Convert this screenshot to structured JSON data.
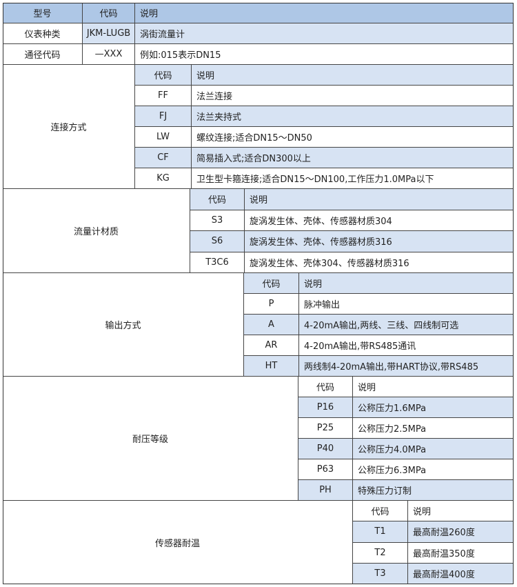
{
  "header": {
    "model": "型号",
    "code": "代码",
    "desc": "说明"
  },
  "rows": [
    {
      "label": "仪表种类",
      "code": "JKM-LUGB",
      "desc": "涡街流量计"
    },
    {
      "label": "通径代码",
      "code": "—XXX",
      "desc": "例如:015表示DN15"
    }
  ],
  "colors": {
    "header": "#aec7e6",
    "shaded": "#d7e3f3",
    "border": "#444444"
  },
  "sections": [
    {
      "label": "连接方式",
      "code_header": "代码",
      "desc_header": "说明",
      "header_shaded": true,
      "first_item_shaded": false,
      "items": [
        {
          "code": "FF",
          "desc": "法兰连接"
        },
        {
          "code": "FJ",
          "desc": "法兰夹持式"
        },
        {
          "code": "LW",
          "desc": "螺纹连接;适合DN15～DN50"
        },
        {
          "code": "CF",
          "desc": "简易插入式;适合DN300以上"
        },
        {
          "code": "KG",
          "desc": "卫生型卡箍连接;适合DN15～DN100,工作压力1.0MPa以下"
        }
      ]
    },
    {
      "label": "流量计材质",
      "code_header": "代码",
      "desc_header": "说明",
      "header_shaded": true,
      "first_item_shaded": false,
      "items": [
        {
          "code": "S3",
          "desc": "旋涡发生体、壳体、传感器材质304"
        },
        {
          "code": "S6",
          "desc": "旋涡发生体、壳体、传感器材质316"
        },
        {
          "code": "T3C6",
          "desc": "旋涡发生体、壳体304、传感器材质316"
        }
      ]
    },
    {
      "label": "输出方式",
      "code_header": "代码",
      "desc_header": "说明",
      "header_shaded": true,
      "first_item_shaded": false,
      "items": [
        {
          "code": "P",
          "desc": "脉冲输出"
        },
        {
          "code": "A",
          "desc": "4-20mA输出,两线、三线、四线制可选"
        },
        {
          "code": "AR",
          "desc": "4-20mA输出,带RS485通讯"
        },
        {
          "code": "HT",
          "desc": "两线制4-20mA输出,带HART协议,带RS485"
        }
      ]
    },
    {
      "label": "耐压等级",
      "code_header": "代码",
      "desc_header": "说明",
      "header_shaded": false,
      "first_item_shaded": true,
      "items": [
        {
          "code": "P16",
          "desc": "公称压力1.6MPa"
        },
        {
          "code": "P25",
          "desc": "公称压力2.5MPa"
        },
        {
          "code": "P40",
          "desc": "公称压力4.0MPa"
        },
        {
          "code": "P63",
          "desc": "公称压力6.3MPa"
        },
        {
          "code": "PH",
          "desc": "特殊压力订制"
        }
      ]
    },
    {
      "label": "传感器耐温",
      "code_header": "代码",
      "desc_header": "说明",
      "header_shaded": false,
      "first_item_shaded": true,
      "items": [
        {
          "code": "T1",
          "desc": "最高耐温260度"
        },
        {
          "code": "T2",
          "desc": "最高耐温350度"
        },
        {
          "code": "T3",
          "desc": "最高耐温400度"
        }
      ]
    }
  ]
}
